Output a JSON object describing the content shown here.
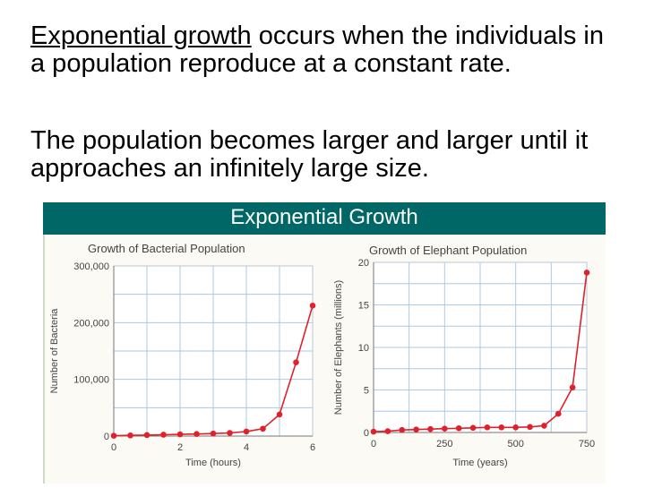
{
  "text": {
    "p1_term": "Exponential growth",
    "p1_rest": " occurs when the individuals in a population reproduce at a constant rate.",
    "p2": "The population becomes larger and larger until it approaches an infinitely large size."
  },
  "banner": {
    "title": "Exponential Growth"
  },
  "colors": {
    "banner": "#006666",
    "curve": "#e0202a",
    "grid": "#a9c9e6",
    "panel_bg": "#fbfaf4"
  },
  "chart_data": [
    {
      "type": "line",
      "title": "Growth of Bacterial Population",
      "xlabel": "Time (hours)",
      "ylabel": "Number of Bacteria",
      "xlim": [
        0,
        6
      ],
      "ylim": [
        0,
        300000
      ],
      "x_ticks": [
        0,
        2,
        4,
        6
      ],
      "y_ticks": [
        0,
        100000,
        200000,
        300000
      ],
      "x_tick_labels": [
        "0",
        "2",
        "4",
        "6"
      ],
      "y_tick_labels": [
        "0",
        "100,000",
        "200,000",
        "300,000"
      ],
      "grid": true,
      "x": [
        0,
        0.5,
        1,
        1.5,
        2,
        2.5,
        3,
        3.5,
        4,
        4.5,
        5,
        5.5,
        6
      ],
      "values": [
        600,
        1200,
        1800,
        2400,
        3000,
        3600,
        4500,
        5500,
        8000,
        13000,
        38000,
        130000,
        230000
      ]
    },
    {
      "type": "line",
      "title": "Growth of Elephant Population",
      "xlabel": "Time (years)",
      "ylabel": "Number of Elephants (millions)",
      "xlim": [
        0,
        750
      ],
      "ylim": [
        0,
        20
      ],
      "x_ticks": [
        0,
        250,
        500,
        750
      ],
      "y_ticks": [
        0,
        5,
        10,
        15,
        20
      ],
      "x_tick_labels": [
        "0",
        "250",
        "500",
        "750"
      ],
      "y_tick_labels": [
        "0",
        "5",
        "10",
        "15",
        "20"
      ],
      "grid": true,
      "x": [
        0,
        50,
        100,
        150,
        200,
        250,
        300,
        350,
        400,
        450,
        500,
        550,
        600,
        650,
        700,
        750
      ],
      "values": [
        0.1,
        0.15,
        0.3,
        0.35,
        0.4,
        0.45,
        0.5,
        0.55,
        0.6,
        0.6,
        0.6,
        0.65,
        0.8,
        2.2,
        5.3,
        18.8
      ]
    }
  ]
}
